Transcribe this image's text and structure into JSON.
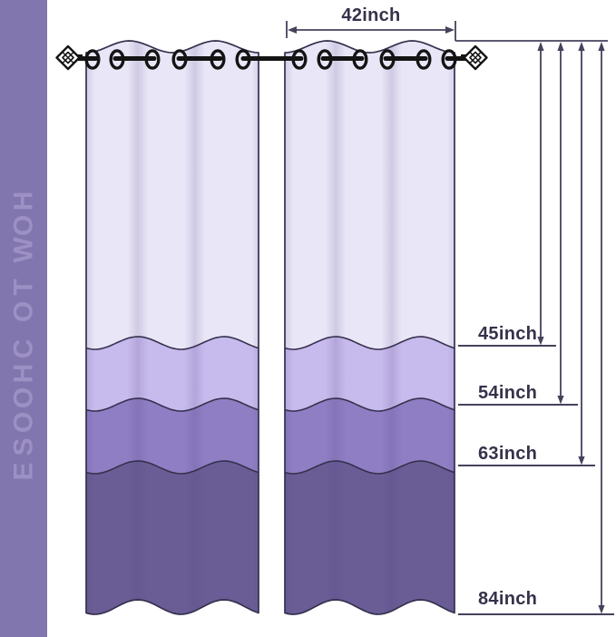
{
  "sidebar": {
    "label": "HOW TO CHOOSE",
    "bg_color": "#8176ae",
    "text_color": "#9c90c4"
  },
  "measurements": {
    "width": {
      "label": "42inch",
      "value": 42,
      "unit": "inch"
    },
    "lengths": [
      {
        "label": "45inch",
        "value": 45
      },
      {
        "label": "54inch",
        "value": 54
      },
      {
        "label": "63inch",
        "value": 63
      },
      {
        "label": "84inch",
        "value": 84
      }
    ]
  },
  "curtain": {
    "panel_count": 2,
    "grommets_per_panel": 6,
    "band_count": 4,
    "band_colors": [
      "#e9e6f7",
      "#c7baec",
      "#8f7ec3",
      "#6a5d95"
    ],
    "outline_color": "#35304e",
    "rod_color": "#141414",
    "finial_fill": "#ffffff",
    "dimension_line_color": "#45425c",
    "label_color": "#35324b"
  }
}
